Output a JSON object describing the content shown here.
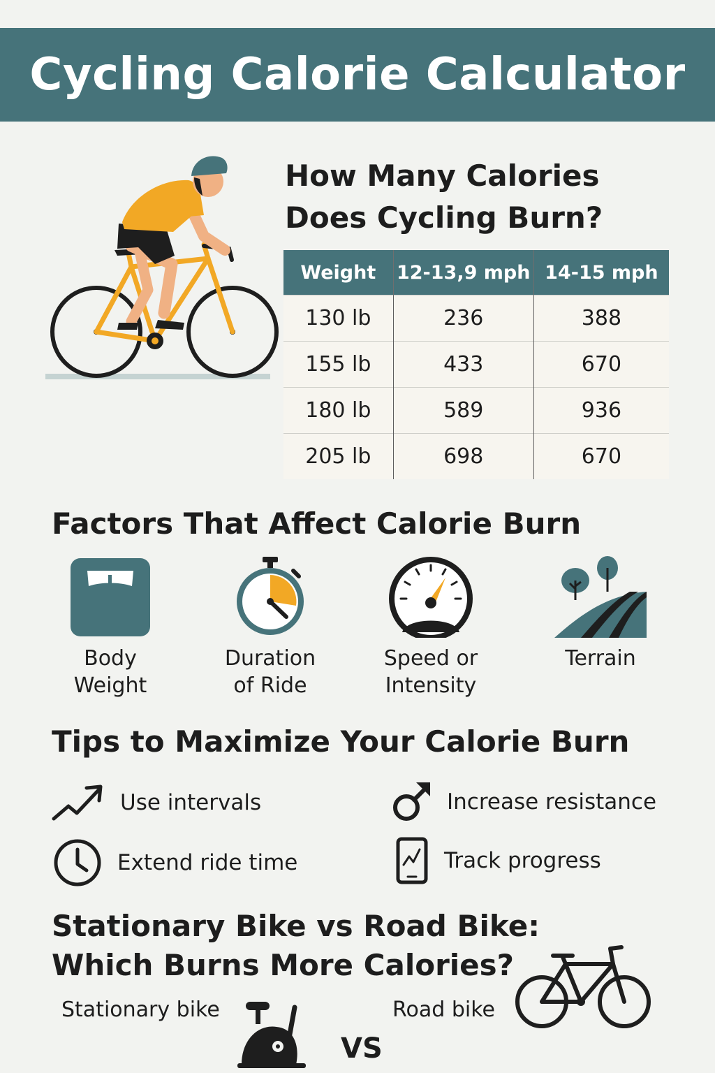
{
  "header": {
    "title": "Cycling Calorie Calculator"
  },
  "calories_section": {
    "title_line1": "How Many Calories",
    "title_line2": "Does Cycling Burn?",
    "table": {
      "headers": [
        "Weight",
        "12-13,9 mph",
        "14-15 mph"
      ],
      "rows": [
        [
          "130 lb",
          "236",
          "388"
        ],
        [
          "155 lb",
          "433",
          "670"
        ],
        [
          "180 lb",
          "589",
          "936"
        ],
        [
          "205 lb",
          "698",
          "670"
        ]
      ]
    }
  },
  "factors_section": {
    "title": "Factors That Affect Calorie Burn",
    "items": [
      {
        "icon": "scale-icon",
        "line1": "Body",
        "line2": "Weight"
      },
      {
        "icon": "stopwatch-icon",
        "line1": "Duration",
        "line2": "of Ride"
      },
      {
        "icon": "speedometer-icon",
        "line1": "Speed or",
        "line2": "Intensity"
      },
      {
        "icon": "terrain-icon",
        "line1": "Terrain",
        "line2": ""
      }
    ]
  },
  "tips_section": {
    "title": "Tips to Maximize Your Calorie Burn",
    "items": [
      {
        "icon": "trend-up-icon",
        "label": "Use intervals"
      },
      {
        "icon": "resistance-icon",
        "label": "Increase resistance"
      },
      {
        "icon": "clock-icon",
        "label": "Extend ride time"
      },
      {
        "icon": "phone-chart-icon",
        "label": "Track progress"
      }
    ]
  },
  "comparison_section": {
    "title_line1": "Stationary Bike vs Road Bike:",
    "title_line2": "Which Burns More Calories?",
    "stationary_label": "Stationary bike",
    "road_label": "Road bike",
    "vs_label": "VS"
  },
  "colors": {
    "accent": "#46737a",
    "highlight": "#f2a825",
    "background": "#f2f3f0",
    "text": "#1d1d1d"
  }
}
